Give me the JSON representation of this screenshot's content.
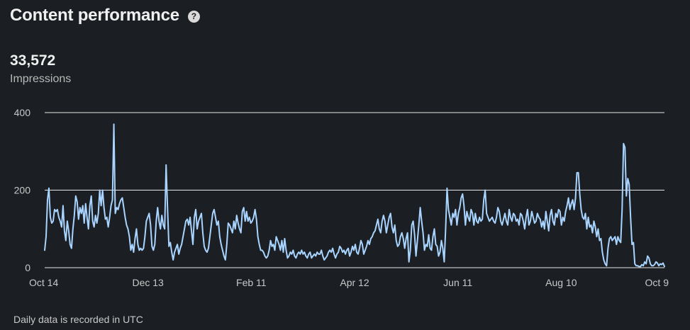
{
  "header": {
    "title": "Content performance",
    "help_icon": "question-circle-icon",
    "help_glyph": "?"
  },
  "metric": {
    "value": "33,572",
    "label": "Impressions"
  },
  "footer": {
    "note": "Daily data is recorded in UTC"
  },
  "colors": {
    "background": "#1b1f23",
    "line": "#a8d4ff",
    "grid": "#e6e6e6"
  },
  "chart_data": {
    "type": "line",
    "x_range": [
      "Oct 14",
      "Oct 9"
    ],
    "ylim": [
      0,
      400
    ],
    "y_ticks": [
      0,
      200,
      400
    ],
    "x_ticks": [
      "Oct 14",
      "Dec 13",
      "Feb 11",
      "Apr 12",
      "Jun 11",
      "Aug 10",
      "Oct 9"
    ],
    "grid": true,
    "series": [
      {
        "values": [
          45,
          80,
          175,
          205,
          130,
          115,
          120,
          150,
          145,
          150,
          130,
          120,
          105,
          160,
          95,
          70,
          120,
          95,
          60,
          50,
          100,
          135,
          185,
          170,
          125,
          155,
          140,
          160,
          115,
          165,
          130,
          100,
          160,
          185,
          120,
          105,
          135,
          115,
          140,
          200,
          160,
          200,
          155,
          125,
          130,
          105,
          130,
          160,
          175,
          370,
          140,
          155,
          150,
          165,
          175,
          180,
          155,
          130,
          110,
          100,
          80,
          45,
          60,
          40,
          75,
          100,
          60,
          45,
          50,
          45,
          50,
          80,
          120,
          130,
          140,
          110,
          55,
          45,
          60,
          120,
          155,
          120,
          100,
          135,
          110,
          100,
          265,
          155,
          55,
          65,
          40,
          20,
          40,
          50,
          60,
          35,
          50,
          60,
          80,
          100,
          120,
          125,
          110,
          130,
          95,
          60,
          130,
          150,
          100,
          120,
          130,
          140,
          90,
          55,
          45,
          40,
          50,
          80,
          110,
          140,
          150,
          130,
          110,
          120,
          80,
          60,
          45,
          30,
          20,
          60,
          115,
          110,
          100,
          90,
          120,
          100,
          135,
          115,
          100,
          90,
          145,
          155,
          120,
          145,
          120,
          130,
          115,
          120,
          130,
          150,
          125,
          80,
          60,
          45,
          45,
          40,
          30,
          25,
          30,
          45,
          70,
          55,
          60,
          45,
          80,
          70,
          60,
          45,
          70,
          40,
          75,
          45,
          25,
          30,
          40,
          35,
          45,
          30,
          25,
          35,
          40,
          35,
          45,
          35,
          40,
          30,
          25,
          35,
          40,
          25,
          30,
          35,
          30,
          40,
          35,
          35,
          45,
          30,
          20,
          25,
          30,
          40,
          45,
          40,
          50,
          35,
          25,
          35,
          40,
          55,
          50,
          40,
          45,
          35,
          45,
          50,
          30,
          40,
          55,
          45,
          60,
          40,
          35,
          50,
          70,
          60,
          35,
          45,
          55,
          70,
          60,
          75,
          80,
          90,
          95,
          110,
          125,
          100,
          90,
          120,
          135,
          120,
          90,
          110,
          130,
          140,
          105,
          90,
          110,
          70,
          55,
          60,
          80,
          90,
          75,
          50,
          75,
          90,
          15,
          45,
          110,
          120,
          85,
          30,
          70,
          110,
          155,
          120,
          90,
          45,
          60,
          55,
          85,
          50,
          45,
          80,
          100,
          60,
          55,
          30,
          40,
          70,
          50,
          15,
          100,
          205,
          150,
          130,
          110,
          140,
          130,
          150,
          110,
          140,
          155,
          180,
          190,
          160,
          110,
          145,
          130,
          120,
          150,
          140,
          110,
          140,
          120,
          115,
          130,
          120,
          125,
          175,
          200,
          140,
          130,
          120,
          125,
          130,
          120,
          115,
          130,
          155,
          145,
          120,
          110,
          125,
          140,
          120,
          110,
          150,
          130,
          120,
          140,
          135,
          120,
          125,
          110,
          140,
          135,
          120,
          100,
          130,
          150,
          110,
          120,
          145,
          130,
          115,
          120,
          140,
          130,
          125,
          105,
          120,
          100,
          145,
          120,
          95,
          135,
          150,
          120,
          110,
          140,
          130,
          150,
          145,
          110,
          130,
          120,
          145,
          160,
          180,
          150,
          165,
          175,
          150,
          180,
          245,
          245,
          190,
          150,
          130,
          125,
          140,
          100,
          130,
          105,
          110,
          90,
          120,
          105,
          80,
          100,
          70,
          75,
          40,
          20,
          10,
          5,
          50,
          75,
          80,
          70,
          75,
          80,
          60,
          80,
          70,
          65,
          150,
          320,
          310,
          185,
          230,
          215,
          130,
          60,
          65,
          10,
          5,
          5,
          3,
          3,
          8,
          5,
          15,
          10,
          30,
          25,
          10,
          5,
          5,
          8,
          15,
          12,
          5,
          10,
          8,
          12,
          3
        ]
      }
    ]
  }
}
